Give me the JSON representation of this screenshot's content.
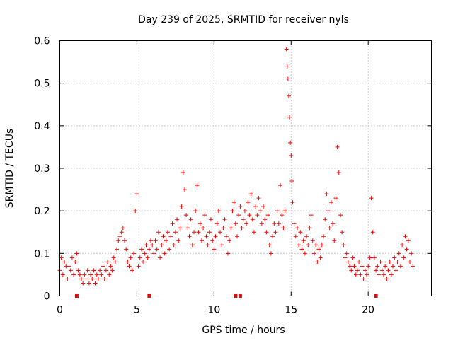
{
  "chart_data": {
    "type": "scatter",
    "title": "Day 239 of 2025, SRMTID for receiver nyls",
    "xlabel": "GPS time / hours",
    "ylabel": "SRMTID / TECUs",
    "xlim": [
      0,
      24.1
    ],
    "ylim": [
      0,
      0.6
    ],
    "x_ticks": [
      0,
      5,
      10,
      15,
      20
    ],
    "x_tick_labels": [
      "0",
      "5",
      "10",
      "15",
      "20"
    ],
    "y_ticks": [
      0,
      0.1,
      0.2,
      0.3,
      0.4,
      0.5,
      0.6
    ],
    "y_tick_labels": [
      "0",
      "0.1",
      "0.2",
      "0.3",
      "0.4",
      "0.5",
      "0.6"
    ],
    "grid": true,
    "marker": "+",
    "color": "#ff0000",
    "series": [
      {
        "name": "SRMTID",
        "points": [
          [
            0.0,
            0.06
          ],
          [
            0.1,
            0.09
          ],
          [
            0.2,
            0.05
          ],
          [
            0.3,
            0.08
          ],
          [
            0.4,
            0.07
          ],
          [
            0.5,
            0.04
          ],
          [
            0.6,
            0.07
          ],
          [
            0.7,
            0.06
          ],
          [
            0.8,
            0.09
          ],
          [
            0.9,
            0.05
          ],
          [
            1.0,
            0.08
          ],
          [
            1.1,
            0.1
          ],
          [
            1.2,
            0.06
          ],
          [
            1.3,
            0.05
          ],
          [
            1.4,
            0.04
          ],
          [
            1.5,
            0.03
          ],
          [
            1.6,
            0.05
          ],
          [
            1.7,
            0.04
          ],
          [
            1.8,
            0.06
          ],
          [
            1.9,
            0.03
          ],
          [
            2.0,
            0.05
          ],
          [
            2.1,
            0.04
          ],
          [
            2.2,
            0.06
          ],
          [
            2.3,
            0.03
          ],
          [
            2.4,
            0.05
          ],
          [
            2.5,
            0.04
          ],
          [
            2.6,
            0.06
          ],
          [
            2.7,
            0.05
          ],
          [
            2.8,
            0.07
          ],
          [
            2.9,
            0.04
          ],
          [
            3.0,
            0.06
          ],
          [
            3.1,
            0.08
          ],
          [
            3.2,
            0.05
          ],
          [
            3.3,
            0.07
          ],
          [
            3.4,
            0.06
          ],
          [
            3.5,
            0.09
          ],
          [
            3.6,
            0.08
          ],
          [
            3.7,
            0.11
          ],
          [
            3.8,
            0.13
          ],
          [
            3.9,
            0.14
          ],
          [
            4.0,
            0.15
          ],
          [
            4.1,
            0.16
          ],
          [
            4.2,
            0.13
          ],
          [
            4.3,
            0.11
          ],
          [
            4.4,
            0.08
          ],
          [
            4.5,
            0.07
          ],
          [
            4.6,
            0.09
          ],
          [
            4.7,
            0.06
          ],
          [
            4.8,
            0.1
          ],
          [
            4.9,
            0.2
          ],
          [
            5.0,
            0.24
          ],
          [
            5.1,
            0.07
          ],
          [
            5.2,
            0.09
          ],
          [
            5.3,
            0.11
          ],
          [
            5.4,
            0.08
          ],
          [
            5.5,
            0.1
          ],
          [
            5.6,
            0.12
          ],
          [
            5.7,
            0.09
          ],
          [
            5.8,
            0.11
          ],
          [
            5.9,
            0.13
          ],
          [
            6.0,
            0.12
          ],
          [
            6.1,
            0.1
          ],
          [
            6.2,
            0.13
          ],
          [
            6.3,
            0.11
          ],
          [
            6.4,
            0.15
          ],
          [
            6.5,
            0.09
          ],
          [
            6.6,
            0.12
          ],
          [
            6.7,
            0.14
          ],
          [
            6.8,
            0.1
          ],
          [
            6.9,
            0.13
          ],
          [
            7.0,
            0.15
          ],
          [
            7.1,
            0.11
          ],
          [
            7.2,
            0.14
          ],
          [
            7.3,
            0.17
          ],
          [
            7.4,
            0.12
          ],
          [
            7.5,
            0.15
          ],
          [
            7.6,
            0.18
          ],
          [
            7.7,
            0.13
          ],
          [
            7.8,
            0.16
          ],
          [
            7.9,
            0.21
          ],
          [
            8.0,
            0.29
          ],
          [
            8.1,
            0.25
          ],
          [
            8.2,
            0.19
          ],
          [
            8.3,
            0.16
          ],
          [
            8.4,
            0.14
          ],
          [
            8.5,
            0.18
          ],
          [
            8.6,
            0.12
          ],
          [
            8.7,
            0.15
          ],
          [
            8.8,
            0.2
          ],
          [
            8.9,
            0.26
          ],
          [
            9.0,
            0.15
          ],
          [
            9.1,
            0.17
          ],
          [
            9.2,
            0.13
          ],
          [
            9.3,
            0.16
          ],
          [
            9.4,
            0.19
          ],
          [
            9.5,
            0.14
          ],
          [
            9.6,
            0.12
          ],
          [
            9.7,
            0.15
          ],
          [
            9.8,
            0.18
          ],
          [
            9.9,
            0.13
          ],
          [
            10.0,
            0.11
          ],
          [
            10.1,
            0.14
          ],
          [
            10.2,
            0.17
          ],
          [
            10.3,
            0.2
          ],
          [
            10.4,
            0.15
          ],
          [
            10.5,
            0.12
          ],
          [
            10.6,
            0.16
          ],
          [
            10.7,
            0.18
          ],
          [
            10.8,
            0.14
          ],
          [
            10.9,
            0.1
          ],
          [
            11.0,
            0.13
          ],
          [
            11.1,
            0.16
          ],
          [
            11.2,
            0.2
          ],
          [
            11.3,
            0.22
          ],
          [
            11.4,
            0.17
          ],
          [
            11.5,
            0.14
          ],
          [
            11.6,
            0.19
          ],
          [
            11.7,
            0.21
          ],
          [
            11.8,
            0.16
          ],
          [
            11.9,
            0.18
          ],
          [
            12.0,
            0.2
          ],
          [
            12.1,
            0.17
          ],
          [
            12.2,
            0.22
          ],
          [
            12.3,
            0.19
          ],
          [
            12.4,
            0.24
          ],
          [
            12.5,
            0.18
          ],
          [
            12.6,
            0.15
          ],
          [
            12.7,
            0.21
          ],
          [
            12.8,
            0.19
          ],
          [
            12.9,
            0.23
          ],
          [
            13.0,
            0.2
          ],
          [
            13.1,
            0.17
          ],
          [
            13.2,
            0.21
          ],
          [
            13.3,
            0.18
          ],
          [
            13.4,
            0.15
          ],
          [
            13.5,
            0.19
          ],
          [
            13.6,
            0.12
          ],
          [
            13.7,
            0.1
          ],
          [
            13.8,
            0.14
          ],
          [
            13.9,
            0.17
          ],
          [
            14.0,
            0.15
          ],
          [
            14.1,
            0.2
          ],
          [
            14.2,
            0.17
          ],
          [
            14.3,
            0.26
          ],
          [
            14.4,
            0.19
          ],
          [
            14.5,
            0.16
          ],
          [
            14.6,
            0.2
          ],
          [
            14.7,
            0.58
          ],
          [
            14.75,
            0.54
          ],
          [
            14.8,
            0.51
          ],
          [
            14.85,
            0.47
          ],
          [
            14.9,
            0.42
          ],
          [
            14.95,
            0.36
          ],
          [
            15.0,
            0.33
          ],
          [
            15.05,
            0.27
          ],
          [
            15.1,
            0.22
          ],
          [
            15.2,
            0.17
          ],
          [
            15.3,
            0.14
          ],
          [
            15.4,
            0.16
          ],
          [
            15.5,
            0.12
          ],
          [
            15.6,
            0.15
          ],
          [
            15.7,
            0.11
          ],
          [
            15.8,
            0.13
          ],
          [
            15.9,
            0.1
          ],
          [
            16.0,
            0.14
          ],
          [
            16.1,
            0.12
          ],
          [
            16.2,
            0.16
          ],
          [
            16.3,
            0.19
          ],
          [
            16.4,
            0.13
          ],
          [
            16.5,
            0.1
          ],
          [
            16.6,
            0.12
          ],
          [
            16.7,
            0.08
          ],
          [
            16.8,
            0.11
          ],
          [
            16.9,
            0.09
          ],
          [
            17.0,
            0.12
          ],
          [
            17.1,
            0.14
          ],
          [
            17.2,
            0.18
          ],
          [
            17.3,
            0.24
          ],
          [
            17.4,
            0.2
          ],
          [
            17.5,
            0.16
          ],
          [
            17.6,
            0.22
          ],
          [
            17.7,
            0.17
          ],
          [
            17.8,
            0.13
          ],
          [
            17.9,
            0.23
          ],
          [
            18.0,
            0.35
          ],
          [
            18.1,
            0.29
          ],
          [
            18.2,
            0.19
          ],
          [
            18.3,
            0.15
          ],
          [
            18.4,
            0.12
          ],
          [
            18.5,
            0.09
          ],
          [
            18.6,
            0.1
          ],
          [
            18.7,
            0.08
          ],
          [
            18.8,
            0.07
          ],
          [
            18.9,
            0.06
          ],
          [
            19.0,
            0.09
          ],
          [
            19.1,
            0.07
          ],
          [
            19.2,
            0.05
          ],
          [
            19.3,
            0.06
          ],
          [
            19.4,
            0.08
          ],
          [
            19.5,
            0.05
          ],
          [
            19.6,
            0.07
          ],
          [
            19.7,
            0.04
          ],
          [
            19.8,
            0.06
          ],
          [
            19.9,
            0.05
          ],
          [
            20.0,
            0.07
          ],
          [
            20.1,
            0.09
          ],
          [
            20.2,
            0.23
          ],
          [
            20.3,
            0.15
          ],
          [
            20.4,
            0.09
          ],
          [
            20.5,
            0.06
          ],
          [
            20.6,
            0.07
          ],
          [
            20.7,
            0.05
          ],
          [
            20.8,
            0.08
          ],
          [
            20.9,
            0.06
          ],
          [
            21.0,
            0.05
          ],
          [
            21.1,
            0.07
          ],
          [
            21.2,
            0.04
          ],
          [
            21.3,
            0.06
          ],
          [
            21.4,
            0.08
          ],
          [
            21.5,
            0.05
          ],
          [
            21.6,
            0.07
          ],
          [
            21.7,
            0.09
          ],
          [
            21.8,
            0.06
          ],
          [
            21.9,
            0.08
          ],
          [
            22.0,
            0.1
          ],
          [
            22.1,
            0.07
          ],
          [
            22.2,
            0.12
          ],
          [
            22.3,
            0.09
          ],
          [
            22.4,
            0.14
          ],
          [
            22.5,
            0.11
          ],
          [
            22.6,
            0.13
          ],
          [
            22.7,
            0.08
          ],
          [
            22.8,
            0.1
          ],
          [
            22.9,
            0.07
          ]
        ]
      }
    ],
    "x_axis_markers": [
      1.1,
      5.8,
      11.4,
      11.7,
      20.5
    ]
  }
}
